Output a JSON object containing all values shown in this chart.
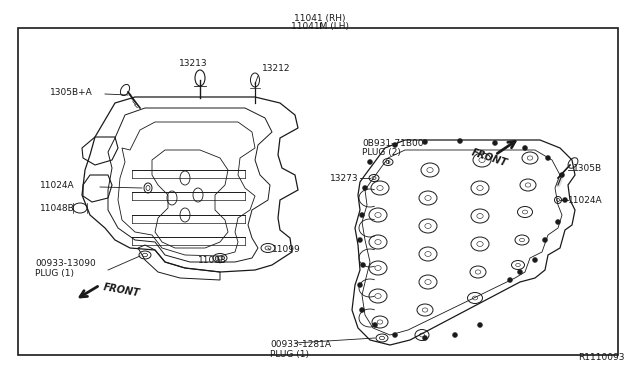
{
  "bg_color": "#ffffff",
  "line_color": "#1a1a1a",
  "fig_width": 6.4,
  "fig_height": 3.72,
  "dpi": 100,
  "top_label_line1": "11041 (RH)",
  "top_label_line2": "11041M (LH)",
  "bottom_right_label": "R1110093"
}
